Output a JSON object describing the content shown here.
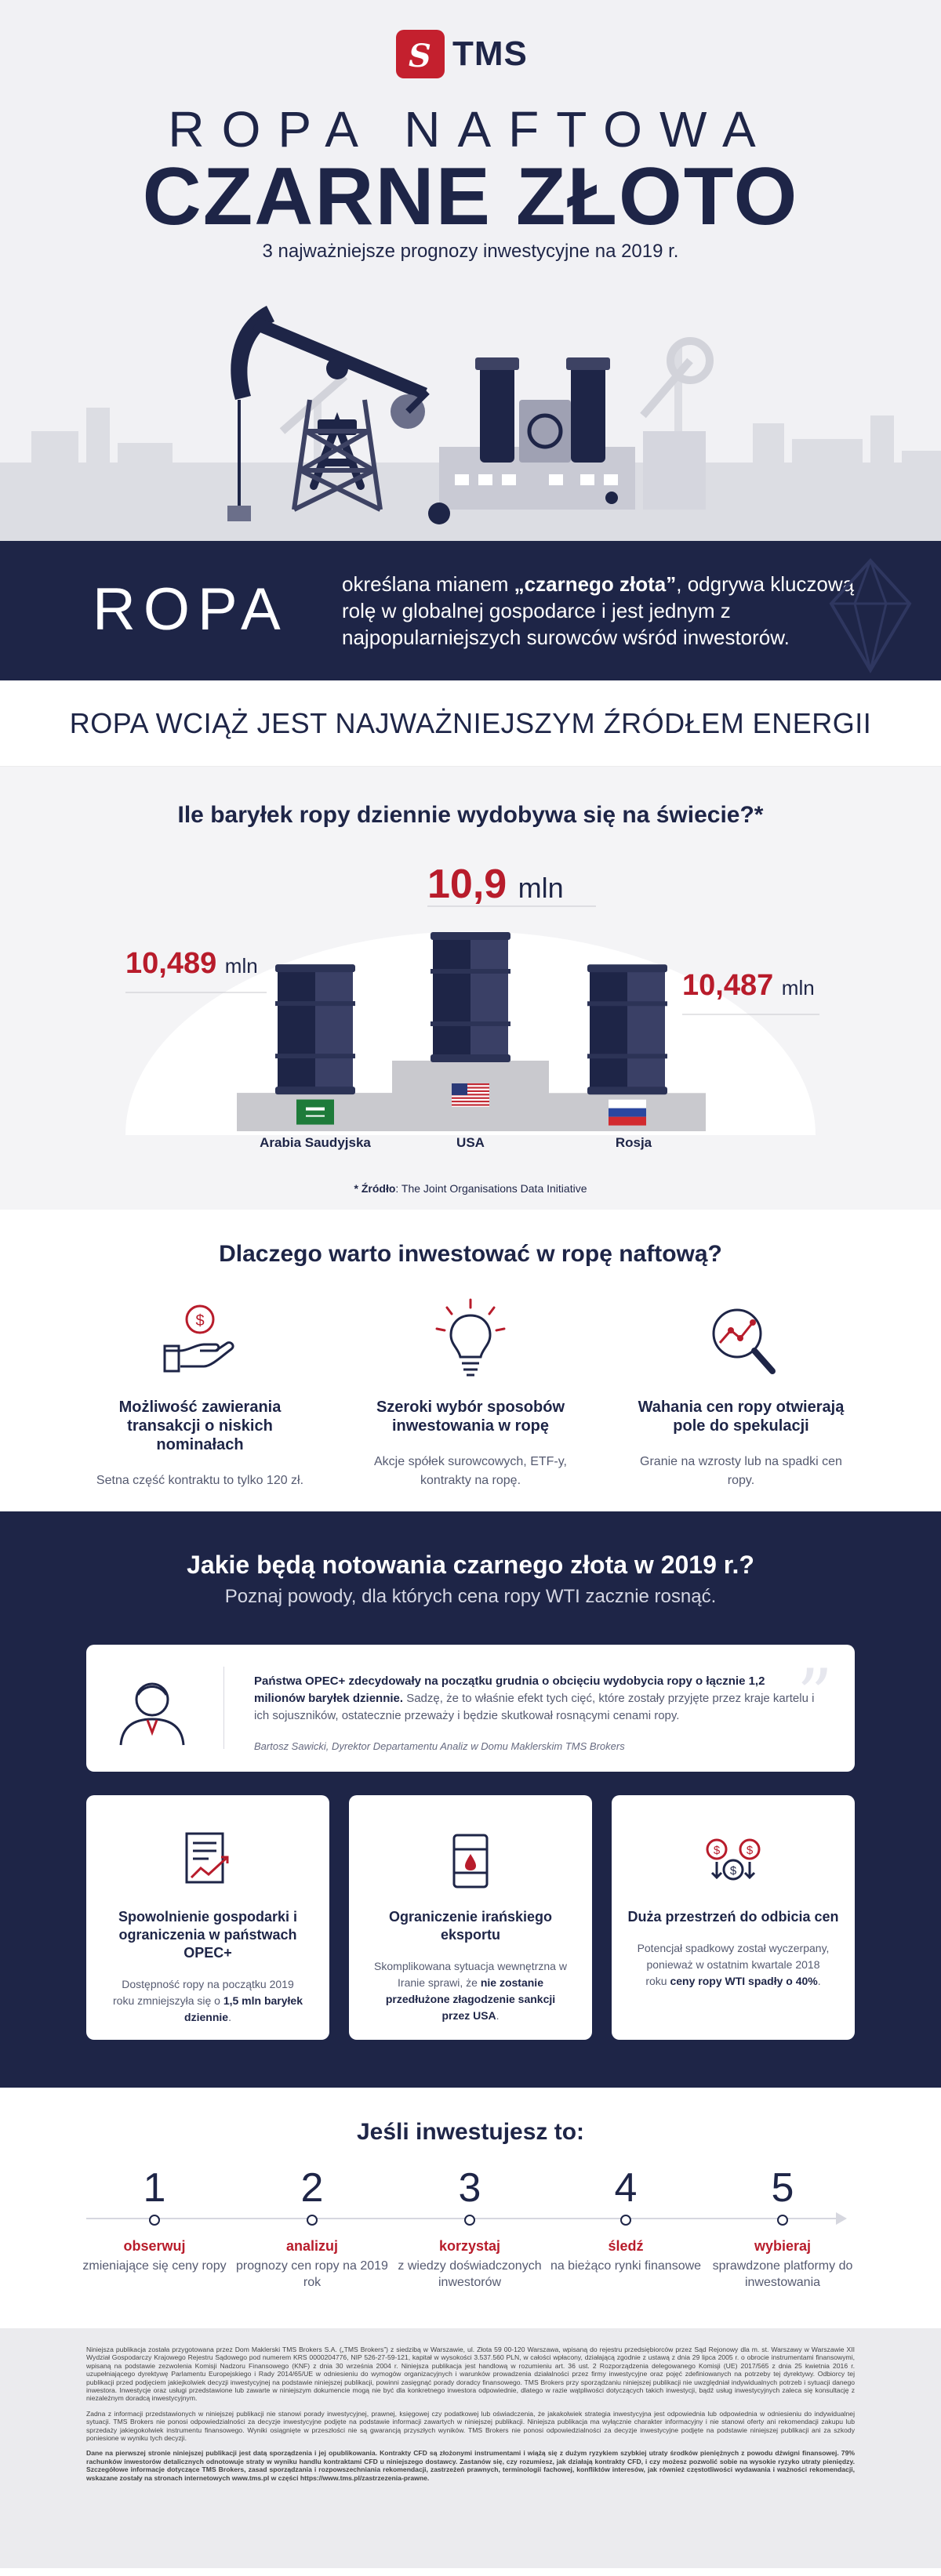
{
  "brand": {
    "logo_text": "TMS"
  },
  "hero": {
    "title_line1": "ROPA NAFTOWA",
    "title_line2": "CZARNE ZŁOTO",
    "subtitle": "3 najważniejsze prognozy inwestycyjne na 2019 r."
  },
  "ropa": {
    "word": "ROPA",
    "desc_before": "określana mianem ",
    "desc_bold": "„czarnego złota”",
    "desc_after": ", odgrywa kluczową rolę w globalnej gospodarce i jest jednym z najpopularniejszych surowców wśród inwestorów."
  },
  "energy_heading": "ROPA WCIĄŻ JEST NAJWAŻNIEJSZYM ŹRÓDŁEM ENERGII",
  "production": {
    "heading": "Ile baryłek ropy dziennie wydobywa się na świecie?*",
    "unit": "mln",
    "countries": [
      {
        "name": "Arabia Saudyjska",
        "value": "10,489"
      },
      {
        "name": "USA",
        "value": "10,9"
      },
      {
        "name": "Rosja",
        "value": "10,487"
      }
    ],
    "source_label": "* Źródło",
    "source_text": ": The Joint Organisations Data Initiative"
  },
  "chart_data": {
    "type": "bar",
    "title": "Ile baryłek ropy dziennie wydobywa się na świecie?*",
    "categories": [
      "Arabia Saudyjska",
      "USA",
      "Rosja"
    ],
    "values": [
      10.489,
      10.9,
      10.487
    ]
  },
  "why": {
    "heading": "Dlaczego warto inwestować w ropę naftową?",
    "items": [
      {
        "title": "Możliwość zawierania transakcji o niskich nominałach",
        "text": "Setna część kontraktu to tylko 120 zł."
      },
      {
        "title": "Szeroki wybór sposobów inwestowania w ropę",
        "text": "Akcje spółek surowcowych, ETF-y, kontrakty na ropę."
      },
      {
        "title": "Wahania cen ropy otwierają pole do spekulacji",
        "text": "Granie na wzrosty lub na spadki cen ropy."
      }
    ]
  },
  "forecast": {
    "heading": "Jakie będą notowania czarnego złota w 2019 r.?",
    "subheading": "Poznaj powody, dla których cena ropy WTI zacznie rosnąć.",
    "quote_bold": "Państwa OPEC+ zdecydowały na początku grudnia o obcięciu wydobycia ropy o łącznie 1,2 milionów baryłek dziennie.",
    "quote_rest": " Sadzę, że to właśnie efekt tych cięć, które zostały przyjęte przez kraje kartelu i ich sojuszników, ostatecznie przeważy i będzie skutkował rosnącymi cenami ropy.",
    "quote_author": "Bartosz Sawicki, Dyrektor Departamentu Analiz w Domu Maklerskim TMS Brokers",
    "cards": [
      {
        "title": "Spowolnienie gospodarki i ograniczenia w państwach OPEC+",
        "text_before": "Dostępność ropy na początku 2019 roku zmniejszyła się o ",
        "text_bold": "1,5 mln baryłek dziennie",
        "text_after": "."
      },
      {
        "title": "Ograniczenie irańskiego eksportu",
        "text_before": "Skomplikowana sytuacja wewnętrzna w Iranie sprawi, że ",
        "text_bold": "nie zostanie przedłużone złagodzenie sankcji przez USA",
        "text_after": "."
      },
      {
        "title": "Duża przestrzeń do odbicia cen",
        "text_before": "Potencjał spadkowy został wyczerpany, ponieważ w ostatnim kwartale 2018 roku ",
        "text_bold": "ceny ropy WTI spadły o 40%",
        "text_after": "."
      }
    ]
  },
  "steps": {
    "heading": "Jeśli inwestujesz to:",
    "items": [
      {
        "num": "1",
        "verb": "obserwuj",
        "desc": "zmieniające się ceny ropy"
      },
      {
        "num": "2",
        "verb": "analizuj",
        "desc": "prognozy cen ropy na 2019 rok"
      },
      {
        "num": "3",
        "verb": "korzystaj",
        "desc": "z wiedzy doświadczonych inwestorów"
      },
      {
        "num": "4",
        "verb": "śledź",
        "desc": "na bieżąco rynki finansowe"
      },
      {
        "num": "5",
        "verb": "wybieraj",
        "desc": "sprawdzone platformy do inwestowania"
      }
    ]
  },
  "legal": {
    "p1": "Niniejsza publikacja została przygotowana przez Dom Maklerski TMS Brokers S.A. („TMS Brokers”) z siedzibą w Warszawie, ul. Złota 59 00-120 Warszawa, wpisaną do rejestru przedsiębiorców przez Sąd Rejonowy dla m. st. Warszawy w Warszawie XII Wydział Gospodarczy Krajowego Rejestru Sądowego pod numerem KRS 0000204776, NIP 526-27-59-121, kapitał w wysokości 3.537.560 PLN, w całości wpłacony, działającą zgodnie z ustawą z dnia 29 lipca 2005 r. o obrocie instrumentami finansowymi, wpisaną na podstawie zezwolenia Komisji Nadzoru Finansowego (KNF) z dnia 30 września 2004 r. Niniejsza publikacja jest handlową w rozumieniu art. 36 ust. 2 Rozporządzenia delegowanego Komisji (UE) 2017/565 z dnia 25 kwietnia 2016 r. uzupełniającego dyrektywę Parlamentu Europejskiego i Rady 2014/65/UE w odniesieniu do wymogów organizacyjnych i warunków prowadzenia działalności przez firmy inwestycyjne oraz pojęć zdefiniowanych na potrzeby tej dyrektywy. Odbiorcy tej publikacji przed podjęciem jakiejkolwiek decyzji inwestycyjnej na podstawie niniejszej publikacji, powinni zasięgnąć porady doradcy finansowego. TMS Brokers przy sporządzaniu niniejszej publikacji nie uwzględniał indywidualnych potrzeb i sytuacji danego inwestora. Inwestycje oraz usługi przedstawione lub zawarte w niniejszym dokumencie mogą nie być dla konkretnego inwestora odpowiednie, dlatego w razie wątpliwości dotyczących takich inwestycji, bądź usług inwestycyjnych zaleca się konsultację z niezależnym doradcą inwestycyjnym.",
    "p2": "Zadna z informacji przedstawionych w niniejszej publikacji nie stanowi porady inwestycyjnej, prawnej, księgowej czy podatkowej lub oświadczenia, że jakakolwiek strategia inwestycyjna jest odpowiednia lub odpowiednia w odniesieniu do indywidualnej sytuacji. TMS Brokers nie ponosi odpowiedzialności za decyzje inwestycyjne podjęte na podstawie informacji zawartych w niniejszej publikacji. Niniejsza publikacja ma wyłącznie charakter informacyjny i nie stanowi oferty ani rekomendacji zakupu lub sprzedaży jakiegokolwiek instrumentu finansowego. Wyniki osiągnięte w przeszłości nie są gwarancją przyszłych wyników. TMS Brokers nie ponosi odpowiedzialności za decyzje inwestycyjne podjęte na podstawie niniejszej publikacji ani za szkody poniesione w wyniku tych decyzji.",
    "p3": "Dane na pierwszej stronie niniejszej publikacji jest datą sporządzenia i jej opublikowania. Kontrakty CFD są złożonymi instrumentami i wiążą się z dużym ryzykiem szybkiej utraty środków pieniężnych z powodu dźwigni finansowej. 79% rachunków inwestorów detalicznych odnotowuje straty w wyniku handlu kontraktami CFD u niniejszego dostawcy. Zastanów się, czy rozumiesz, jak działają kontrakty CFD, i czy możesz pozwolić sobie na wysokie ryzyko utraty pieniędzy. Szczegółowe informacje dotyczące TMS Brokers, zasad sporządzania i rozpowszechniania rekomendacji, zastrzeżeń prawnych, terminologii fachowej, konfliktów interesów, jak również częstotliwości wydawania i ważności rekomendacji, wskazane zostały na stronach internetowych www.tms.pl w części https://www.tms.pl/zastrzezenia-prawne."
  }
}
